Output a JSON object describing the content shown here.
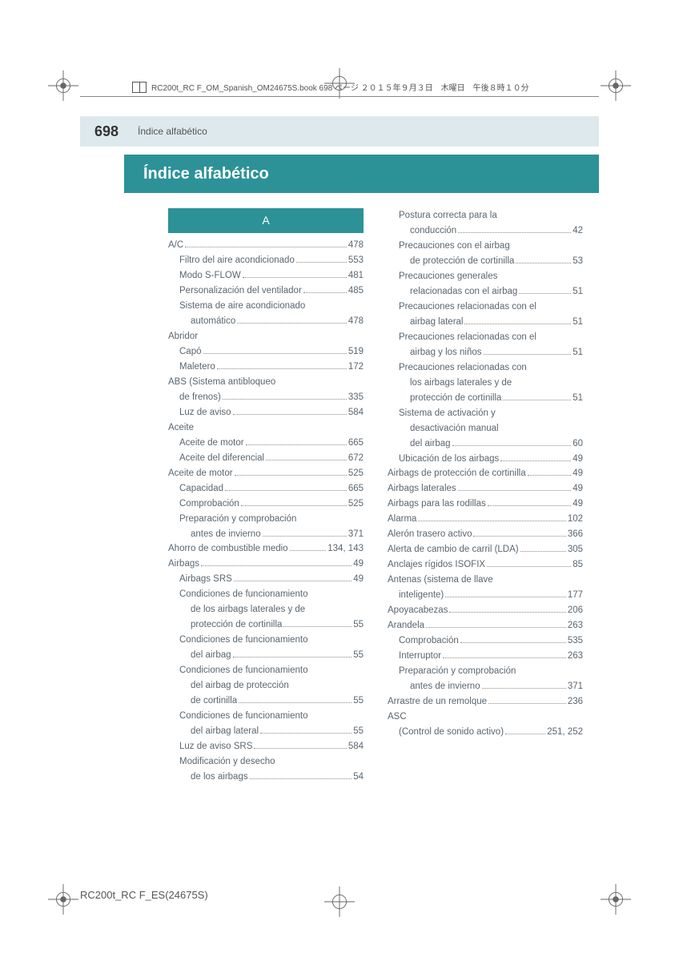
{
  "meta": {
    "text": "RC200t_RC F_OM_Spanish_OM24675S.book  698 ページ  ２０１５年９月３日　木曜日　午後８時１０分"
  },
  "header": {
    "page_number": "698",
    "label": "Índice alfabético"
  },
  "title": "Índice alfabético",
  "section_letter": "A",
  "left_column": [
    {
      "label": "A/C",
      "page": "478",
      "indent": 0
    },
    {
      "label": "Filtro del aire acondicionado",
      "page": "553",
      "indent": 1
    },
    {
      "label": "Modo S-FLOW",
      "page": "481",
      "indent": 1
    },
    {
      "label": "Personalización del ventilador",
      "page": "485",
      "indent": 1
    },
    {
      "label": "Sistema de aire acondicionado",
      "page": "",
      "indent": 1
    },
    {
      "label": "automático",
      "page": "478",
      "indent": 2
    },
    {
      "label": "Abridor",
      "page": "",
      "indent": 0
    },
    {
      "label": "Capó",
      "page": "519",
      "indent": 1
    },
    {
      "label": "Maletero",
      "page": "172",
      "indent": 1
    },
    {
      "label": "ABS (Sistema antibloqueo",
      "page": "",
      "indent": 0
    },
    {
      "label": "de frenos)",
      "page": "335",
      "indent": 1,
      "bold_cont": true
    },
    {
      "label": "Luz de aviso",
      "page": "584",
      "indent": 1
    },
    {
      "label": "Aceite",
      "page": "",
      "indent": 0
    },
    {
      "label": "Aceite de motor",
      "page": "665",
      "indent": 1
    },
    {
      "label": "Aceite del diferencial",
      "page": "672",
      "indent": 1
    },
    {
      "label": "Aceite de motor",
      "page": "525",
      "indent": 0
    },
    {
      "label": "Capacidad",
      "page": "665",
      "indent": 1
    },
    {
      "label": "Comprobación",
      "page": "525",
      "indent": 1
    },
    {
      "label": "Preparación y comprobación",
      "page": "",
      "indent": 1
    },
    {
      "label": "antes de invierno",
      "page": "371",
      "indent": 2
    },
    {
      "label": "Ahorro de combustible medio",
      "page": "134, 143",
      "indent": 0
    },
    {
      "label": "Airbags",
      "page": "49",
      "indent": 0
    },
    {
      "label": "Airbags SRS",
      "page": "49",
      "indent": 1
    },
    {
      "label": "Condiciones de funcionamiento",
      "page": "",
      "indent": 1
    },
    {
      "label": "de los airbags laterales y de",
      "page": "",
      "indent": 2
    },
    {
      "label": "protección de cortinilla",
      "page": "55",
      "indent": 2
    },
    {
      "label": "Condiciones de funcionamiento",
      "page": "",
      "indent": 1
    },
    {
      "label": "del airbag",
      "page": "55",
      "indent": 2
    },
    {
      "label": "Condiciones de funcionamiento",
      "page": "",
      "indent": 1
    },
    {
      "label": "del airbag de protección",
      "page": "",
      "indent": 2
    },
    {
      "label": "de cortinilla",
      "page": "55",
      "indent": 2
    },
    {
      "label": "Condiciones de funcionamiento",
      "page": "",
      "indent": 1
    },
    {
      "label": "del airbag lateral",
      "page": "55",
      "indent": 2
    },
    {
      "label": "Luz de aviso SRS",
      "page": "584",
      "indent": 1
    },
    {
      "label": "Modificación y desecho",
      "page": "",
      "indent": 1
    },
    {
      "label": "de los airbags",
      "page": "54",
      "indent": 2
    }
  ],
  "right_column": [
    {
      "label": "Postura correcta para la",
      "page": "",
      "indent": 1
    },
    {
      "label": "conducción",
      "page": "42",
      "indent": 2
    },
    {
      "label": "Precauciones con el airbag",
      "page": "",
      "indent": 1
    },
    {
      "label": "de protección de cortinilla",
      "page": "53",
      "indent": 2
    },
    {
      "label": "Precauciones generales",
      "page": "",
      "indent": 1
    },
    {
      "label": "relacionadas con el airbag",
      "page": "51",
      "indent": 2
    },
    {
      "label": "Precauciones relacionadas con el",
      "page": "",
      "indent": 1
    },
    {
      "label": "airbag lateral",
      "page": "51",
      "indent": 2
    },
    {
      "label": "Precauciones relacionadas con el",
      "page": "",
      "indent": 1
    },
    {
      "label": "airbag y los niños",
      "page": "51",
      "indent": 2
    },
    {
      "label": "Precauciones relacionadas con",
      "page": "",
      "indent": 1
    },
    {
      "label": "los airbags laterales y de",
      "page": "",
      "indent": 2
    },
    {
      "label": "protección de cortinilla",
      "page": "51",
      "indent": 2
    },
    {
      "label": "Sistema de activación y",
      "page": "",
      "indent": 1
    },
    {
      "label": "desactivación manual",
      "page": "",
      "indent": 2
    },
    {
      "label": "del airbag",
      "page": "60",
      "indent": 2
    },
    {
      "label": "Ubicación de los airbags",
      "page": "49",
      "indent": 1
    },
    {
      "label": "Airbags de protección de cortinilla",
      "page": "49",
      "indent": 0
    },
    {
      "label": "Airbags laterales",
      "page": "49",
      "indent": 0
    },
    {
      "label": "Airbags para las rodillas",
      "page": "49",
      "indent": 0
    },
    {
      "label": "Alarma",
      "page": "102",
      "indent": 0
    },
    {
      "label": "Alerón trasero activo",
      "page": "366",
      "indent": 0
    },
    {
      "label": "Alerta de cambio de carril (LDA)",
      "page": "305",
      "indent": 0
    },
    {
      "label": "Anclajes rígidos ISOFIX",
      "page": "85",
      "indent": 0
    },
    {
      "label": "Antenas (sistema de llave",
      "page": "",
      "indent": 0
    },
    {
      "label": "inteligente)",
      "page": "177",
      "indent": 1,
      "bold_cont": true
    },
    {
      "label": "Apoyacabezas",
      "page": "206",
      "indent": 0
    },
    {
      "label": "Arandela",
      "page": "263",
      "indent": 0
    },
    {
      "label": "Comprobación",
      "page": "535",
      "indent": 1
    },
    {
      "label": "Interruptor",
      "page": "263",
      "indent": 1
    },
    {
      "label": "Preparación y comprobación",
      "page": "",
      "indent": 1
    },
    {
      "label": "antes de invierno",
      "page": "371",
      "indent": 2
    },
    {
      "label": "Arrastre de un remolque",
      "page": "236",
      "indent": 0
    },
    {
      "label": "ASC",
      "page": "",
      "indent": 0
    },
    {
      "label": "(Control de sonido activo)",
      "page": "251, 252",
      "indent": 1
    }
  ],
  "footer": "RC200t_RC F_ES(24675S)",
  "colors": {
    "header_bg": "#dde9ed",
    "title_bg": "#2c9298",
    "text": "#5a6670"
  }
}
